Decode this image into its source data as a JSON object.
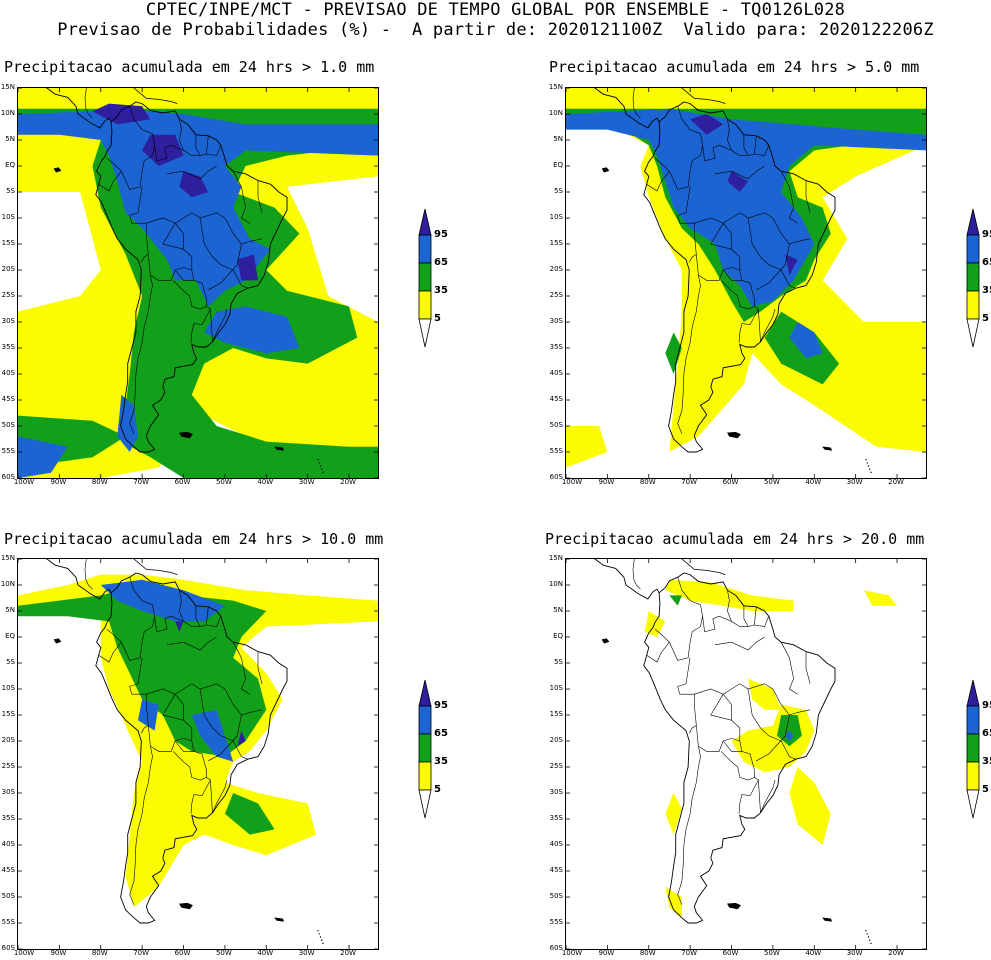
{
  "header": {
    "line1": "CPTEC/INPE/MCT - PREVISAO DE TEMPO GLOBAL POR ENSEMBLE - TQ0126L028",
    "line2": "Previsao de Probabilidades (%) -  A partir de: 2020121100Z  Valido para: 2020122206Z"
  },
  "lat_labels": [
    "15N",
    "10N",
    "5N",
    "EQ",
    "5S",
    "10S",
    "15S",
    "20S",
    "25S",
    "30S",
    "35S",
    "40S",
    "45S",
    "50S",
    "55S",
    "60S"
  ],
  "lon_labels": [
    "100W",
    "90W",
    "80W",
    "70W",
    "60W",
    "50W",
    "40W",
    "30W",
    "20W"
  ],
  "legend": {
    "levels": [
      "95",
      "65",
      "35",
      "5"
    ],
    "colors": {
      "above95": "#2e1f9e",
      "c65_95": "#1c64d2",
      "c35_65": "#12a01a",
      "c5_35": "#fcfc00",
      "below5": "#ffffff"
    }
  },
  "panels": [
    {
      "title": "Precipitacao acumulada em 24 hrs > 1.0 mm"
    },
    {
      "title": "Precipitacao acumulada em 24 hrs > 5.0 mm"
    },
    {
      "title": "Precipitacao acumulada em 24 hrs > 10.0 mm"
    },
    {
      "title": "Precipitacao acumulada em 24 hrs > 20.0 mm"
    }
  ]
}
